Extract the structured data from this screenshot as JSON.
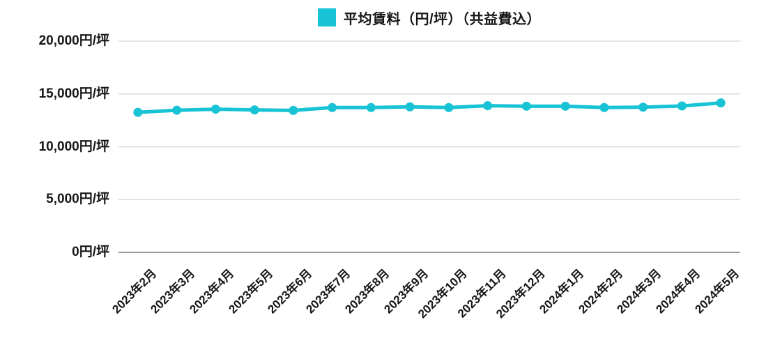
{
  "legend": {
    "label": "平均賃料（円/坪）（共益費込）",
    "swatch_color": "#17c3d5"
  },
  "chart_data": {
    "type": "line",
    "title": "平均賃料（円/坪）（共益費込）",
    "categories": [
      "2023年2月",
      "2023年3月",
      "2023年4月",
      "2023年5月",
      "2023年6月",
      "2023年7月",
      "2023年8月",
      "2023年9月",
      "2023年10月",
      "2023年11月",
      "2023年12月",
      "2024年1月",
      "2024年2月",
      "2024年3月",
      "2024年4月",
      "2024年5月"
    ],
    "series": [
      {
        "name": "平均賃料（円/坪）（共益費込）",
        "color": "#17c3d5",
        "values": [
          13260,
          13460,
          13560,
          13490,
          13440,
          13710,
          13710,
          13780,
          13710,
          13890,
          13840,
          13840,
          13710,
          13750,
          13860,
          14150
        ]
      }
    ],
    "ylim": [
      0,
      20000
    ],
    "y_ticks": [
      {
        "value": 20000,
        "label": "20,000円/坪"
      },
      {
        "value": 15000,
        "label": "15,000円/坪"
      },
      {
        "value": 10000,
        "label": "10,000円/坪"
      },
      {
        "value": 5000,
        "label": "5,000円/坪"
      },
      {
        "value": 0,
        "label": "0円/坪"
      }
    ],
    "grid": "horizontal",
    "legend_position": "top-center",
    "colors": {
      "grid_line": "#dcdcdc",
      "axis_line": "#9b9b9b",
      "text": "#161616",
      "background": "#ffffff"
    }
  }
}
